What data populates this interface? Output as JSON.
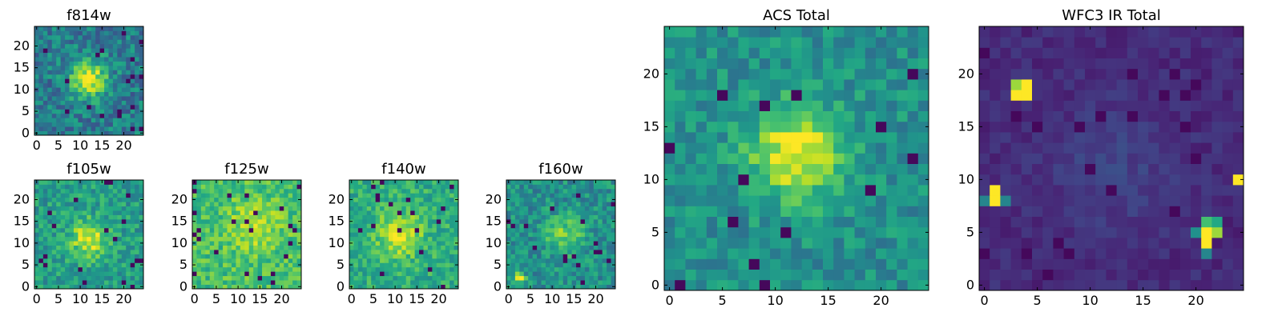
{
  "chart_data": [
    {
      "type": "heatmap",
      "title": "f814w",
      "grid_size": 25,
      "x_ticks": [
        "0",
        "5",
        "10",
        "15",
        "20"
      ],
      "y_ticks": [
        "0",
        "5",
        "10",
        "15",
        "20"
      ],
      "xlim": [
        -0.5,
        24.5
      ],
      "ylim": [
        -0.5,
        24.5
      ],
      "colormap": "viridis",
      "features": {
        "noise": 0.17,
        "base": 0.42,
        "blobs": [
          {
            "x": 12,
            "y": 12.5,
            "amp": 0.55,
            "sigma": 3
          }
        ]
      }
    },
    {
      "type": "heatmap",
      "title": "f105w",
      "grid_size": 25,
      "x_ticks": [
        "0",
        "5",
        "10",
        "15",
        "20"
      ],
      "y_ticks": [
        "0",
        "5",
        "10",
        "15",
        "20"
      ],
      "xlim": [
        -0.5,
        24.5
      ],
      "ylim": [
        -0.5,
        24.5
      ],
      "colormap": "viridis",
      "features": {
        "noise": 0.15,
        "base": 0.55,
        "blobs": [
          {
            "x": 12,
            "y": 11,
            "amp": 0.4,
            "sigma": 3
          }
        ]
      }
    },
    {
      "type": "heatmap",
      "title": "f125w",
      "grid_size": 25,
      "x_ticks": [
        "0",
        "5",
        "10",
        "15",
        "20"
      ],
      "y_ticks": [
        "0",
        "5",
        "10",
        "15",
        "20"
      ],
      "xlim": [
        -0.5,
        24.5
      ],
      "ylim": [
        -0.5,
        24.5
      ],
      "colormap": "viridis",
      "features": {
        "noise": 0.14,
        "base": 0.7,
        "blobs": [
          {
            "x": 14,
            "y": 14,
            "amp": 0.2,
            "sigma": 4
          }
        ]
      }
    },
    {
      "type": "heatmap",
      "title": "f140w",
      "grid_size": 25,
      "x_ticks": [
        "0",
        "5",
        "10",
        "15",
        "20"
      ],
      "y_ticks": [
        "0",
        "5",
        "10",
        "15",
        "20"
      ],
      "xlim": [
        -0.5,
        24.5
      ],
      "ylim": [
        -0.5,
        24.5
      ],
      "colormap": "viridis",
      "features": {
        "noise": 0.14,
        "base": 0.62,
        "blobs": [
          {
            "x": 11,
            "y": 12,
            "amp": 0.35,
            "sigma": 3.5
          }
        ]
      }
    },
    {
      "type": "heatmap",
      "title": "f160w",
      "grid_size": 25,
      "x_ticks": [
        "0",
        "5",
        "10",
        "15",
        "20"
      ],
      "y_ticks": [
        "0",
        "5",
        "10",
        "15",
        "20"
      ],
      "xlim": [
        -0.5,
        24.5
      ],
      "ylim": [
        -0.5,
        24.5
      ],
      "colormap": "viridis",
      "features": {
        "noise": 0.15,
        "base": 0.5,
        "blobs": [
          {
            "x": 13,
            "y": 12,
            "amp": 0.3,
            "sigma": 3
          },
          {
            "x": 2.5,
            "y": 2,
            "amp": 0.6,
            "sigma": 0.8
          }
        ]
      }
    },
    {
      "type": "heatmap",
      "title": "ACS Total",
      "grid_size": 25,
      "x_ticks": [
        "0",
        "5",
        "10",
        "15",
        "20"
      ],
      "y_ticks": [
        "0",
        "5",
        "10",
        "15",
        "20"
      ],
      "xlim": [
        -0.5,
        24.5
      ],
      "ylim": [
        -0.5,
        24.5
      ],
      "colormap": "viridis",
      "features": {
        "noise": 0.13,
        "base": 0.5,
        "blobs": [
          {
            "x": 12,
            "y": 12.5,
            "amp": 0.5,
            "sigma": 3
          }
        ]
      }
    },
    {
      "type": "heatmap",
      "title": "WFC3 IR Total",
      "grid_size": 25,
      "x_ticks": [
        "0",
        "5",
        "10",
        "15",
        "20"
      ],
      "y_ticks": [
        "0",
        "5",
        "10",
        "15",
        "20"
      ],
      "xlim": [
        -0.5,
        24.5
      ],
      "ylim": [
        -0.5,
        24.5
      ],
      "colormap": "viridis",
      "features": {
        "noise": 0.05,
        "base": 0.12,
        "blobs": [
          {
            "x": 12,
            "y": 11,
            "amp": 0.08,
            "sigma": 4
          }
        ],
        "hot_pixels": [
          {
            "x": 3,
            "y": 18,
            "v": 1.0
          },
          {
            "x": 4,
            "y": 18,
            "v": 1.0
          },
          {
            "x": 4,
            "y": 19,
            "v": 1.0
          },
          {
            "x": 3,
            "y": 19,
            "v": 0.85
          },
          {
            "x": 1,
            "y": 8,
            "v": 1.0
          },
          {
            "x": 1,
            "y": 9,
            "v": 1.0
          },
          {
            "x": 0,
            "y": 8,
            "v": 0.45
          },
          {
            "x": 2,
            "y": 8,
            "v": 0.45
          },
          {
            "x": 24,
            "y": 10,
            "v": 1.0
          },
          {
            "x": 21,
            "y": 4,
            "v": 1.0
          },
          {
            "x": 21,
            "y": 5,
            "v": 1.0
          },
          {
            "x": 22,
            "y": 5,
            "v": 0.85
          },
          {
            "x": 21,
            "y": 6,
            "v": 0.7
          },
          {
            "x": 22,
            "y": 6,
            "v": 0.6
          },
          {
            "x": 20,
            "y": 5,
            "v": 0.5
          },
          {
            "x": 21,
            "y": 3,
            "v": 0.45
          }
        ]
      }
    }
  ]
}
